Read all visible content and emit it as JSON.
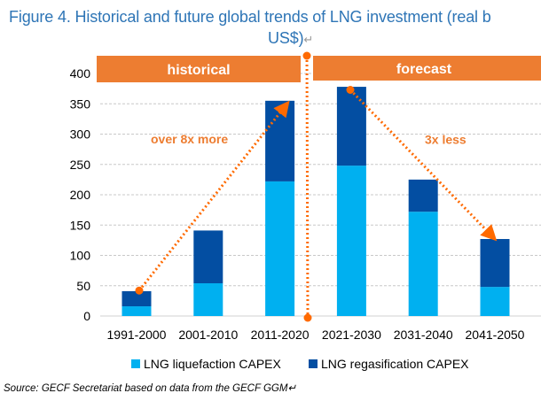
{
  "title": {
    "line1": "Figure 4. Historical and future global trends of LNG investment (real b",
    "line2": "US$)",
    "return_mark": "↵"
  },
  "source": "Source: GECF Secretariat based on data from the GECF GGM↵",
  "colors": {
    "liquefaction": "#00B0F0",
    "regasification": "#034EA2",
    "accent": "#ED7D31",
    "title": "#2E75B6"
  },
  "chart_data": {
    "type": "bar",
    "stacked": true,
    "categories": [
      "1991-2000",
      "2001-2010",
      "2011-2020",
      "2021-2030",
      "2031-2040",
      "2041-2050"
    ],
    "series": [
      {
        "name": "LNG liquefaction CAPEX",
        "values": [
          16,
          54,
          222,
          248,
          172,
          48
        ]
      },
      {
        "name": "LNG regasification CAPEX",
        "values": [
          25,
          87,
          133,
          130,
          53,
          79
        ]
      }
    ],
    "ylim": [
      0,
      400
    ],
    "yticks": [
      0,
      50,
      100,
      150,
      200,
      250,
      300,
      350,
      400
    ],
    "grid": true,
    "legend": "bottom",
    "banners": [
      "historical",
      "forecast"
    ],
    "annotations": [
      "over 8x more",
      "3x less"
    ]
  }
}
